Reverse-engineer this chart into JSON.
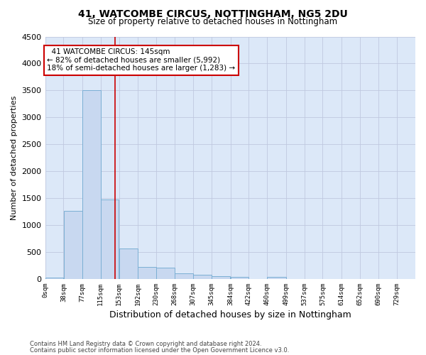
{
  "title1": "41, WATCOMBE CIRCUS, NOTTINGHAM, NG5 2DU",
  "title2": "Size of property relative to detached houses in Nottingham",
  "xlabel": "Distribution of detached houses by size in Nottingham",
  "ylabel": "Number of detached properties",
  "property_size": 145,
  "property_label": "41 WATCOMBE CIRCUS: 145sqm",
  "pct_smaller": 82,
  "count_smaller": 5992,
  "pct_larger": 18,
  "count_larger": 1283,
  "bin_edges": [
    0,
    38,
    77,
    115,
    153,
    192,
    230,
    268,
    307,
    345,
    384,
    422,
    460,
    499,
    537,
    575,
    614,
    652,
    690,
    729,
    767
  ],
  "bar_heights": [
    25,
    1260,
    3500,
    1480,
    560,
    220,
    210,
    110,
    80,
    50,
    40,
    0,
    45,
    0,
    0,
    0,
    0,
    0,
    0,
    0
  ],
  "bar_color": "#c8d8f0",
  "bar_edge_color": "#7bafd4",
  "vline_x": 145,
  "vline_color": "#cc0000",
  "annotation_box_color": "#cc0000",
  "grid_color": "#c0c8e0",
  "bg_color": "#dce8f8",
  "ylim": [
    0,
    4500
  ],
  "yticks": [
    0,
    500,
    1000,
    1500,
    2000,
    2500,
    3000,
    3500,
    4000,
    4500
  ],
  "footer1": "Contains HM Land Registry data © Crown copyright and database right 2024.",
  "footer2": "Contains public sector information licensed under the Open Government Licence v3.0."
}
